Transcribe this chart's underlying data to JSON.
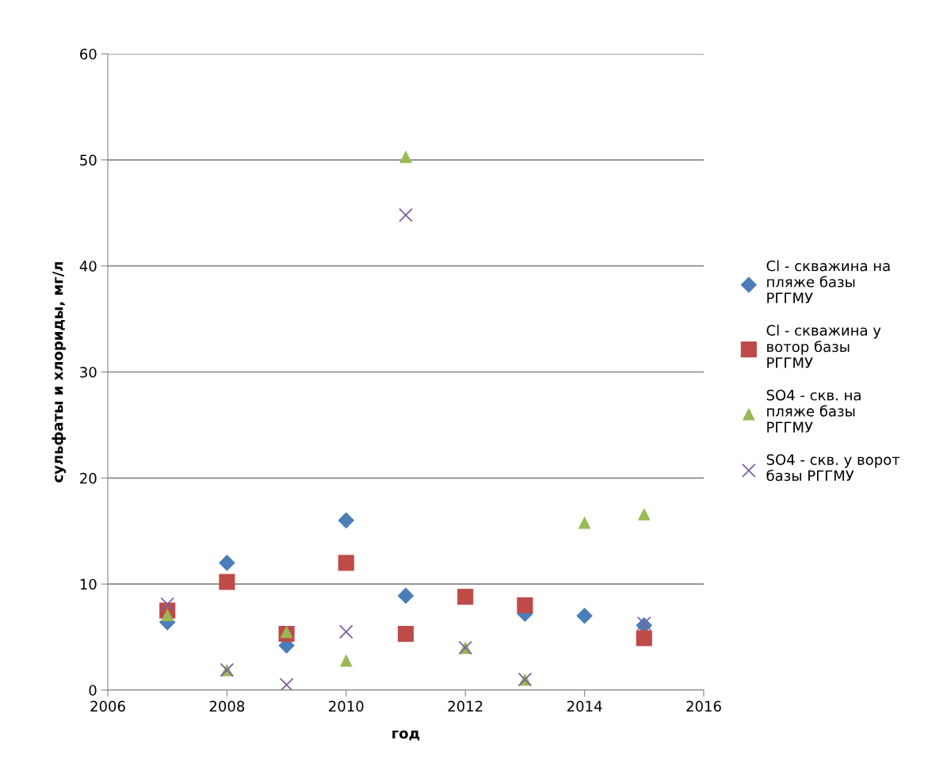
{
  "chart_data": {
    "type": "scatter",
    "xlabel": "год",
    "ylabel": "сульфаты и хлориды, мг/л",
    "x": [
      2007,
      2008,
      2009,
      2010,
      2011,
      2012,
      2013,
      2014,
      2015
    ],
    "series": [
      {
        "name": "Cl - скважина на\nпляже базы\nРГГМУ",
        "color": "#4a7ebb",
        "marker": "diamond",
        "values": [
          6.4,
          12.0,
          4.2,
          16.0,
          8.9,
          null,
          7.2,
          7.0,
          6.1
        ]
      },
      {
        "name": "Cl - скважина у\nвотор базы\nРГГМУ",
        "color": "#be4b48",
        "marker": "square",
        "values": [
          7.5,
          10.2,
          5.3,
          12.0,
          5.3,
          8.8,
          8.0,
          null,
          4.9
        ]
      },
      {
        "name": "SO4 - скв. на\nпляже базы\nРГГМУ",
        "color": "#98b954",
        "marker": "triangle",
        "values": [
          7.1,
          1.9,
          5.5,
          2.8,
          50.3,
          4.0,
          1.0,
          15.8,
          16.6
        ]
      },
      {
        "name": "SO4 - скв. у ворот\nбазы РГГМУ",
        "color": "#7d60a0",
        "marker": "cross",
        "values": [
          8.1,
          1.9,
          0.5,
          5.5,
          44.8,
          4.0,
          1.0,
          null,
          6.3
        ]
      }
    ],
    "xlim": [
      2006,
      2016
    ],
    "xticks": [
      2006,
      2008,
      2010,
      2012,
      2014,
      2016
    ],
    "ylim": [
      0,
      60
    ],
    "yticks": [
      0,
      10,
      20,
      30,
      40,
      50,
      60
    ],
    "grid": "y",
    "legend": "right"
  }
}
